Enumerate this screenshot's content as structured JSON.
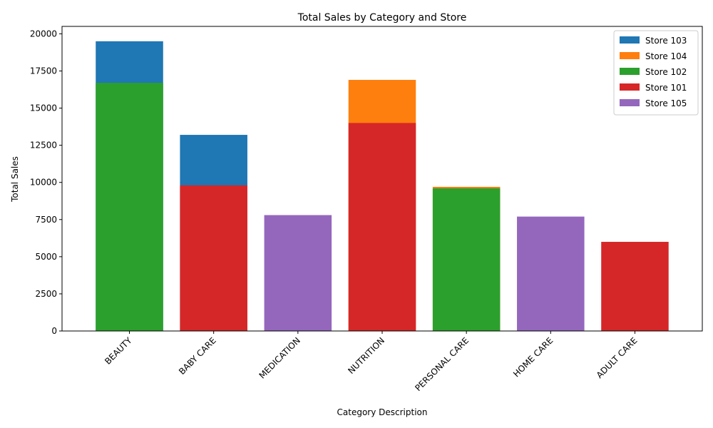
{
  "chart_data": {
    "type": "bar",
    "title": "Total Sales by Category and Store",
    "xlabel": "Category Description",
    "ylabel": "Total Sales",
    "ylim": [
      0,
      20500
    ],
    "yticks": [
      0,
      2500,
      5000,
      7500,
      10000,
      12500,
      15000,
      17500,
      20000
    ],
    "grid": false,
    "legend_position": "top-right",
    "categories": [
      "BEAUTY",
      "BABY CARE",
      "MEDICATION",
      "NUTRITION",
      "PERSONAL CARE",
      "HOME CARE",
      "ADULT CARE"
    ],
    "series": [
      {
        "name": "Store 103",
        "color": "#1f77b4",
        "values": [
          19500,
          13200,
          null,
          null,
          null,
          null,
          null
        ]
      },
      {
        "name": "Store 104",
        "color": "#ff7f0e",
        "values": [
          null,
          null,
          null,
          16900,
          9700,
          null,
          null
        ]
      },
      {
        "name": "Store 102",
        "color": "#2ca02c",
        "values": [
          16700,
          null,
          null,
          null,
          9600,
          null,
          null
        ]
      },
      {
        "name": "Store 101",
        "color": "#d62728",
        "values": [
          null,
          9800,
          null,
          14000,
          null,
          null,
          6000
        ]
      },
      {
        "name": "Store 105",
        "color": "#9467bd",
        "values": [
          null,
          null,
          7800,
          null,
          null,
          7700,
          null
        ]
      }
    ]
  }
}
